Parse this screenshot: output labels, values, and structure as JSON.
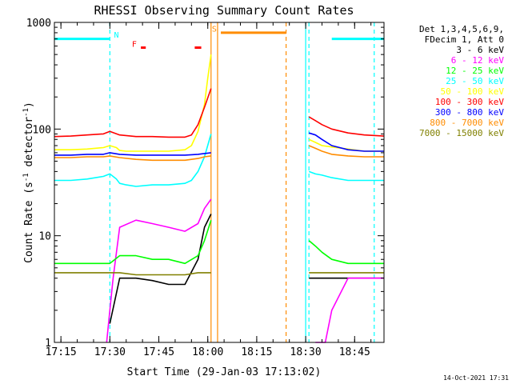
{
  "chart_data": {
    "type": "line",
    "title": "RHESSI Observing Summary Count Rates",
    "xlabel": "Start Time (29-Jan-03 17:13:02)",
    "ylabel_parts": [
      "Count Rate (s",
      "-1",
      " detector",
      "-1",
      ")"
    ],
    "yscale": "log",
    "ylim": [
      1,
      1000
    ],
    "xlim_minutes": [
      0,
      101
    ],
    "x_ticks": [
      {
        "label": "17:15",
        "min": 2
      },
      {
        "label": "17:30",
        "min": 17
      },
      {
        "label": "17:45",
        "min": 32
      },
      {
        "label": "18:00",
        "min": 47
      },
      {
        "label": "18:15",
        "min": 62
      },
      {
        "label": "18:30",
        "min": 77
      },
      {
        "label": "18:45",
        "min": 92
      }
    ],
    "y_ticks": [
      {
        "label": "1",
        "value": 1
      },
      {
        "label": "10",
        "value": 10
      },
      {
        "label": "100",
        "value": 100
      },
      {
        "label": "1000",
        "value": 1000
      }
    ],
    "legend_header": [
      "Det 1,3,4,5,6,9,",
      "FDecim 1, Att 0"
    ],
    "legend_position": "right",
    "series": [
      {
        "name": "3 - 6 keV",
        "color": "#000000",
        "x": [
          0,
          5,
          10,
          15,
          17,
          20,
          25,
          30,
          35,
          40,
          44,
          46,
          48,
          49,
          70,
          75,
          78,
          80,
          85,
          90,
          95,
          101
        ],
        "y": [
          null,
          null,
          null,
          null,
          1.5,
          4,
          4,
          3.8,
          3.5,
          3.5,
          6,
          12,
          16,
          null,
          null,
          null,
          4,
          4,
          4,
          4,
          4,
          4
        ]
      },
      {
        "name": "6 - 12 keV",
        "color": "#ff00ff",
        "x": [
          0,
          5,
          10,
          14,
          16,
          17,
          18,
          20,
          25,
          30,
          35,
          40,
          44,
          46,
          48,
          49,
          70,
          75,
          78,
          80,
          83,
          85,
          90,
          95,
          101
        ],
        "y": [
          null,
          null,
          null,
          null,
          1,
          2,
          4,
          12,
          14,
          13,
          12,
          11,
          13,
          18,
          22,
          null,
          null,
          null,
          null,
          1,
          1,
          2,
          4,
          4,
          4
        ]
      },
      {
        "name": "12 - 25 keV",
        "color": "#00ff00",
        "x": [
          0,
          5,
          10,
          15,
          17,
          20,
          25,
          30,
          35,
          40,
          44,
          46,
          48,
          49,
          70,
          75,
          78,
          80,
          82,
          85,
          90,
          95,
          101
        ],
        "y": [
          5.5,
          5.5,
          5.5,
          5.5,
          5.5,
          6.5,
          6.5,
          6,
          6,
          5.5,
          6.5,
          9,
          14,
          null,
          null,
          null,
          9,
          8,
          7,
          6,
          5.5,
          5.5,
          5.5
        ]
      },
      {
        "name": "25 - 50 keV",
        "color": "#00ffff",
        "x": [
          0,
          5,
          10,
          15,
          17,
          19,
          20,
          22,
          25,
          30,
          35,
          40,
          42,
          44,
          46,
          48,
          49,
          70,
          75,
          78,
          80,
          82,
          85,
          90,
          95,
          101
        ],
        "y": [
          33,
          33,
          34,
          36,
          38,
          34,
          31,
          30,
          29,
          30,
          30,
          31,
          33,
          40,
          55,
          90,
          null,
          null,
          null,
          40,
          38,
          37,
          35,
          33,
          33,
          33
        ]
      },
      {
        "name": "50 - 100 keV",
        "color": "#ffff00",
        "x": [
          0,
          5,
          10,
          15,
          17,
          19,
          20,
          22,
          25,
          30,
          35,
          40,
          42,
          44,
          46,
          47,
          48,
          49,
          70,
          75,
          78,
          80,
          82,
          85,
          90,
          95,
          101
        ],
        "y": [
          64,
          64,
          65,
          67,
          70,
          67,
          63,
          62,
          62,
          62,
          62,
          64,
          70,
          95,
          170,
          300,
          500,
          null,
          null,
          null,
          80,
          75,
          70,
          68,
          65,
          62,
          62
        ]
      },
      {
        "name": "100 - 300 keV",
        "color": "#ff0000",
        "x": [
          0,
          5,
          10,
          15,
          17,
          20,
          25,
          30,
          35,
          40,
          42,
          44,
          46,
          48,
          49,
          70,
          75,
          78,
          80,
          82,
          85,
          90,
          95,
          101
        ],
        "y": [
          85,
          86,
          88,
          90,
          95,
          88,
          85,
          85,
          84,
          84,
          88,
          110,
          160,
          240,
          null,
          null,
          null,
          130,
          120,
          110,
          100,
          92,
          88,
          86
        ]
      },
      {
        "name": "300 - 800 keV",
        "color": "#0000ff",
        "x": [
          0,
          5,
          10,
          15,
          17,
          20,
          25,
          30,
          35,
          40,
          44,
          46,
          48,
          49,
          70,
          75,
          78,
          80,
          82,
          85,
          90,
          95,
          101
        ],
        "y": [
          57,
          57,
          58,
          58,
          60,
          58,
          57,
          57,
          57,
          57,
          58,
          59,
          60,
          null,
          null,
          null,
          92,
          88,
          80,
          70,
          64,
          62,
          62
        ]
      },
      {
        "name": "800 - 7000 keV",
        "color": "#ff8c00",
        "x": [
          0,
          5,
          10,
          15,
          17,
          20,
          25,
          30,
          35,
          40,
          44,
          46,
          48,
          49,
          70,
          75,
          78,
          80,
          82,
          85,
          90,
          95,
          101
        ],
        "y": [
          54,
          54,
          55,
          55,
          56,
          54,
          52,
          51,
          51,
          51,
          53,
          55,
          56,
          null,
          null,
          null,
          70,
          66,
          62,
          58,
          56,
          55,
          55
        ]
      },
      {
        "name": "7000 - 15000 keV",
        "color": "#808000",
        "x": [
          0,
          5,
          10,
          15,
          17,
          20,
          25,
          30,
          35,
          40,
          44,
          46,
          48,
          49,
          70,
          75,
          78,
          80,
          82,
          85,
          90,
          95,
          101
        ],
        "y": [
          4.5,
          4.5,
          4.5,
          4.5,
          4.5,
          4.5,
          4.3,
          4.3,
          4.3,
          4.3,
          4.5,
          4.5,
          4.5,
          null,
          null,
          null,
          4.5,
          4.5,
          4.5,
          4.5,
          4.5,
          4.5,
          4.5
        ]
      }
    ],
    "attenuator_segments": [
      {
        "x0": 0,
        "x1": 17,
        "y": 700,
        "color": "#00ffff"
      },
      {
        "x0": 85,
        "x1": 101,
        "y": 700,
        "color": "#00ffff"
      },
      {
        "x0": 51,
        "x1": 71,
        "y": 800,
        "color": "#ff8c00"
      }
    ],
    "flag_segments": [
      {
        "x0": 26.5,
        "x1": 28,
        "y": 580,
        "color": "#ff0000"
      },
      {
        "x0": 43,
        "x1": 45,
        "y": 580,
        "color": "#ff0000"
      }
    ],
    "event_labels": [
      {
        "text": "N",
        "x": 19,
        "y": 720,
        "color": "#00ffff"
      },
      {
        "text": "F",
        "x": 24.5,
        "y": 590,
        "color": "#ff0000"
      },
      {
        "text": "S",
        "x": 49,
        "y": 820,
        "color": "#ff8c00"
      }
    ],
    "vlines": [
      {
        "x": 17,
        "color": "#00ffff",
        "style": "dashed"
      },
      {
        "x": 98,
        "color": "#00ffff",
        "style": "dashed"
      },
      {
        "x": 48,
        "color": "#ff8c00",
        "style": "solid"
      },
      {
        "x": 50,
        "color": "#ff8c00",
        "style": "solid"
      },
      {
        "x": 71,
        "color": "#ff8c00",
        "style": "dashed"
      },
      {
        "x": 77,
        "color": "#00ffff",
        "style": "solid"
      },
      {
        "x": 78,
        "color": "#00ffff",
        "style": "dashed"
      }
    ]
  },
  "footer": {
    "date": "14-Oct-2021 17:31"
  }
}
